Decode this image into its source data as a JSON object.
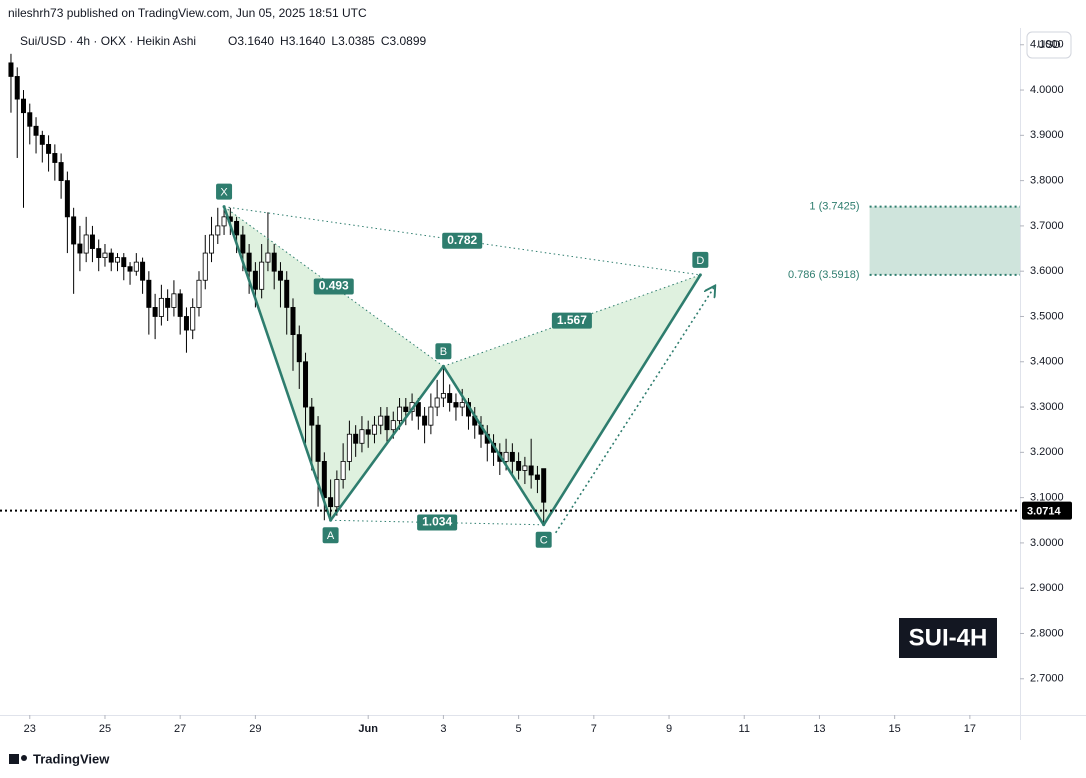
{
  "header": {
    "published": "nileshrh73 published on TradingView.com, Jun 05, 2025 18:51 UTC",
    "brand": "TradingView"
  },
  "chart_data": {
    "type": "candlestick",
    "symbol": "Sui/USD · 4h · OKX · Heikin Ashi",
    "ohlc_legend": [
      "O3.1640",
      "H3.1640",
      "L3.0385",
      "C3.0899"
    ],
    "currency": "USD",
    "badge": "SUI-4H",
    "xlim": [
      "2025-05-22 05:00",
      "2025-06-18 08:00"
    ],
    "xticks": [
      {
        "value": "2025-05-23 00:00",
        "label": "23"
      },
      {
        "value": "2025-05-25 00:00",
        "label": "25"
      },
      {
        "value": "2025-05-27 00:00",
        "label": "27"
      },
      {
        "value": "2025-05-29 00:00",
        "label": "29"
      },
      {
        "value": "2025-06-01 00:00",
        "label": "Jun"
      },
      {
        "value": "2025-06-03 00:00",
        "label": "3"
      },
      {
        "value": "2025-06-05 00:00",
        "label": "5"
      },
      {
        "value": "2025-06-07 00:00",
        "label": "7"
      },
      {
        "value": "2025-06-09 00:00",
        "label": "9"
      },
      {
        "value": "2025-06-11 00:00",
        "label": "11"
      },
      {
        "value": "2025-06-13 00:00",
        "label": "13"
      },
      {
        "value": "2025-06-15 00:00",
        "label": "15"
      },
      {
        "value": "2025-06-17 00:00",
        "label": "17"
      }
    ],
    "ylim": [
      2.62,
      4.137
    ],
    "yticks": [
      {
        "value": 2.7,
        "label": "2.7000"
      },
      {
        "value": 2.8,
        "label": "2.8000"
      },
      {
        "value": 2.9,
        "label": "2.9000"
      },
      {
        "value": 3.0,
        "label": "3.0000"
      },
      {
        "value": 3.1,
        "label": "3.1000"
      },
      {
        "value": 3.2,
        "label": "3.2000"
      },
      {
        "value": 3.3,
        "label": "3.3000"
      },
      {
        "value": 3.4,
        "label": "3.4000"
      },
      {
        "value": 3.5,
        "label": "3.5000"
      },
      {
        "value": 3.6,
        "label": "3.6000"
      },
      {
        "value": 3.7,
        "label": "3.7000"
      },
      {
        "value": 3.8,
        "label": "3.8000"
      },
      {
        "value": 3.9,
        "label": "3.9000"
      },
      {
        "value": 4.0,
        "label": "4.0000"
      },
      {
        "value": 4.1,
        "label": "4.1000"
      }
    ],
    "grid": false,
    "up_color": "#ffffff",
    "down_color": "#000000",
    "candles": {
      "x": [
        "2025-05-22 12:00",
        "2025-05-22 16:00",
        "2025-05-22 20:00",
        "2025-05-23 00:00",
        "2025-05-23 04:00",
        "2025-05-23 08:00",
        "2025-05-23 12:00",
        "2025-05-23 16:00",
        "2025-05-23 20:00",
        "2025-05-24 00:00",
        "2025-05-24 04:00",
        "2025-05-24 08:00",
        "2025-05-24 12:00",
        "2025-05-24 16:00",
        "2025-05-24 20:00",
        "2025-05-25 00:00",
        "2025-05-25 04:00",
        "2025-05-25 08:00",
        "2025-05-25 12:00",
        "2025-05-25 16:00",
        "2025-05-25 20:00",
        "2025-05-26 00:00",
        "2025-05-26 04:00",
        "2025-05-26 08:00",
        "2025-05-26 12:00",
        "2025-05-26 16:00",
        "2025-05-26 20:00",
        "2025-05-27 00:00",
        "2025-05-27 04:00",
        "2025-05-27 08:00",
        "2025-05-27 12:00",
        "2025-05-27 16:00",
        "2025-05-27 20:00",
        "2025-05-28 00:00",
        "2025-05-28 04:00",
        "2025-05-28 08:00",
        "2025-05-28 12:00",
        "2025-05-28 16:00",
        "2025-05-28 20:00",
        "2025-05-29 00:00",
        "2025-05-29 04:00",
        "2025-05-29 08:00",
        "2025-05-29 12:00",
        "2025-05-29 16:00",
        "2025-05-29 20:00",
        "2025-05-30 00:00",
        "2025-05-30 04:00",
        "2025-05-30 08:00",
        "2025-05-30 12:00",
        "2025-05-30 16:00",
        "2025-05-30 20:00",
        "2025-05-31 00:00",
        "2025-05-31 04:00",
        "2025-05-31 08:00",
        "2025-05-31 12:00",
        "2025-05-31 16:00",
        "2025-05-31 20:00",
        "2025-06-01 00:00",
        "2025-06-01 04:00",
        "2025-06-01 08:00",
        "2025-06-01 12:00",
        "2025-06-01 16:00",
        "2025-06-01 20:00",
        "2025-06-02 00:00",
        "2025-06-02 04:00",
        "2025-06-02 08:00",
        "2025-06-02 12:00",
        "2025-06-02 16:00",
        "2025-06-02 20:00",
        "2025-06-03 00:00",
        "2025-06-03 04:00",
        "2025-06-03 08:00",
        "2025-06-03 12:00",
        "2025-06-03 16:00",
        "2025-06-03 20:00",
        "2025-06-04 00:00",
        "2025-06-04 04:00",
        "2025-06-04 08:00",
        "2025-06-04 12:00",
        "2025-06-04 16:00",
        "2025-06-04 20:00",
        "2025-06-05 00:00",
        "2025-06-05 04:00",
        "2025-06-05 08:00",
        "2025-06-05 12:00",
        "2025-06-05 16:00"
      ],
      "open": [
        4.06,
        4.03,
        3.98,
        3.95,
        3.92,
        3.9,
        3.88,
        3.86,
        3.84,
        3.8,
        3.72,
        3.66,
        3.64,
        3.68,
        3.65,
        3.63,
        3.64,
        3.62,
        3.63,
        3.61,
        3.6,
        3.62,
        3.58,
        3.52,
        3.5,
        3.54,
        3.52,
        3.55,
        3.5,
        3.47,
        3.52,
        3.58,
        3.64,
        3.68,
        3.7,
        3.72,
        3.71,
        3.68,
        3.64,
        3.6,
        3.56,
        3.62,
        3.64,
        3.6,
        3.58,
        3.52,
        3.46,
        3.4,
        3.3,
        3.26,
        3.18,
        3.1,
        3.08,
        3.14,
        3.18,
        3.24,
        3.22,
        3.25,
        3.24,
        3.26,
        3.28,
        3.25,
        3.27,
        3.3,
        3.29,
        3.31,
        3.28,
        3.26,
        3.3,
        3.32,
        3.33,
        3.31,
        3.3,
        3.31,
        3.28,
        3.26,
        3.24,
        3.22,
        3.2,
        3.18,
        3.2,
        3.18,
        3.16,
        3.17,
        3.15,
        3.164
      ],
      "high": [
        4.08,
        4.05,
        4.0,
        3.97,
        3.94,
        3.91,
        3.9,
        3.88,
        3.86,
        3.82,
        3.74,
        3.7,
        3.72,
        3.7,
        3.67,
        3.66,
        3.65,
        3.64,
        3.64,
        3.62,
        3.64,
        3.63,
        3.6,
        3.55,
        3.57,
        3.56,
        3.58,
        3.56,
        3.52,
        3.54,
        3.6,
        3.68,
        3.72,
        3.74,
        3.7425,
        3.74,
        3.72,
        3.7,
        3.66,
        3.62,
        3.66,
        3.73,
        3.66,
        3.62,
        3.6,
        3.54,
        3.48,
        3.42,
        3.32,
        3.28,
        3.2,
        3.14,
        3.16,
        3.22,
        3.27,
        3.26,
        3.28,
        3.27,
        3.28,
        3.3,
        3.3,
        3.29,
        3.32,
        3.32,
        3.33,
        3.32,
        3.3,
        3.33,
        3.36,
        3.39,
        3.35,
        3.33,
        3.34,
        3.32,
        3.3,
        3.28,
        3.26,
        3.24,
        3.22,
        3.23,
        3.22,
        3.2,
        3.19,
        3.23,
        3.17,
        3.164
      ],
      "low": [
        3.95,
        3.85,
        3.74,
        3.88,
        3.86,
        3.84,
        3.82,
        3.8,
        3.76,
        3.64,
        3.55,
        3.6,
        3.62,
        3.62,
        3.6,
        3.61,
        3.6,
        3.6,
        3.58,
        3.57,
        3.59,
        3.55,
        3.46,
        3.45,
        3.48,
        3.49,
        3.5,
        3.46,
        3.42,
        3.45,
        3.5,
        3.56,
        3.62,
        3.66,
        3.68,
        3.68,
        3.64,
        3.6,
        3.55,
        3.52,
        3.54,
        3.6,
        3.56,
        3.52,
        3.46,
        3.38,
        3.34,
        3.22,
        3.16,
        3.08,
        3.05,
        3.05,
        3.06,
        3.12,
        3.16,
        3.19,
        3.2,
        3.21,
        3.22,
        3.24,
        3.22,
        3.23,
        3.25,
        3.26,
        3.27,
        3.25,
        3.22,
        3.24,
        3.28,
        3.3,
        3.29,
        3.27,
        3.28,
        3.25,
        3.23,
        3.21,
        3.18,
        3.17,
        3.15,
        3.16,
        3.15,
        3.14,
        3.13,
        3.12,
        3.11,
        3.0385
      ],
      "close": [
        4.03,
        3.98,
        3.95,
        3.92,
        3.9,
        3.88,
        3.86,
        3.84,
        3.8,
        3.72,
        3.66,
        3.64,
        3.68,
        3.65,
        3.63,
        3.64,
        3.62,
        3.63,
        3.61,
        3.6,
        3.62,
        3.58,
        3.52,
        3.5,
        3.54,
        3.52,
        3.55,
        3.5,
        3.47,
        3.52,
        3.58,
        3.64,
        3.68,
        3.7,
        3.72,
        3.71,
        3.68,
        3.64,
        3.6,
        3.56,
        3.62,
        3.64,
        3.6,
        3.58,
        3.52,
        3.46,
        3.4,
        3.3,
        3.26,
        3.18,
        3.1,
        3.08,
        3.14,
        3.18,
        3.24,
        3.22,
        3.25,
        3.24,
        3.26,
        3.28,
        3.25,
        3.27,
        3.3,
        3.29,
        3.31,
        3.28,
        3.26,
        3.3,
        3.32,
        3.33,
        3.31,
        3.3,
        3.31,
        3.28,
        3.26,
        3.24,
        3.22,
        3.2,
        3.18,
        3.2,
        3.18,
        3.16,
        3.17,
        3.15,
        3.14,
        3.0899
      ]
    },
    "pattern": {
      "color": "#2e7d6e",
      "fill": "#4caf50",
      "points": [
        {
          "name": "X",
          "x": "2025-05-28 04:00",
          "price": 3.7425
        },
        {
          "name": "A",
          "x": "2025-05-31 00:00",
          "price": 3.05
        },
        {
          "name": "B",
          "x": "2025-06-03 00:00",
          "price": 3.39
        },
        {
          "name": "C",
          "x": "2025-06-05 16:00",
          "price": 3.04
        },
        {
          "name": "D",
          "x": "2025-06-09 20:00",
          "price": 3.5918
        }
      ],
      "ratios": {
        "XD": "0.782",
        "XB": "0.493",
        "BD": "1.567",
        "AC": "1.034"
      }
    },
    "target_zone": {
      "start": "2025-06-14 08:00",
      "color": "#a8cdc0",
      "levels": [
        {
          "value": 3.7425,
          "label": "1 (3.7425)"
        },
        {
          "value": 3.5918,
          "label": "0.786 (3.5918)"
        }
      ]
    },
    "last_price": {
      "value": 3.0714,
      "label": "3.0714"
    }
  }
}
